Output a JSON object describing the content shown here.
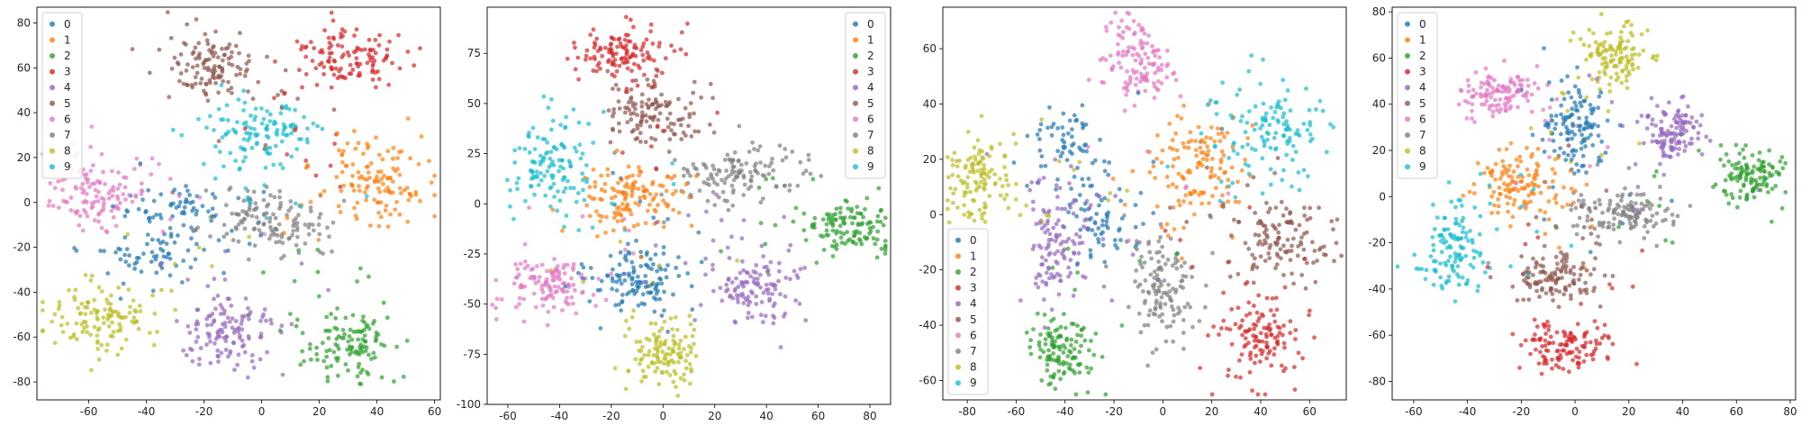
{
  "figure": {
    "palette": {
      "0": "#1f77b4",
      "1": "#ff7f0e",
      "2": "#2ca02c",
      "3": "#d62728",
      "4": "#9467bd",
      "5": "#8c564b",
      "6": "#e377c2",
      "7": "#7f7f7f",
      "8": "#bcbd22",
      "9": "#17becf"
    }
  },
  "chart_data": [
    {
      "type": "scatter",
      "title": "",
      "xlabel": "",
      "ylabel": "",
      "xlim": [
        -78,
        62
      ],
      "ylim": [
        -88,
        87
      ],
      "xticks": [
        -60,
        -40,
        -20,
        0,
        20,
        40,
        60
      ],
      "yticks": [
        -80,
        -60,
        -40,
        -20,
        0,
        20,
        40,
        60,
        80
      ],
      "legend": {
        "position": "top-left",
        "entries": [
          "0",
          "1",
          "2",
          "3",
          "4",
          "5",
          "6",
          "7",
          "8",
          "9"
        ]
      },
      "grid": false,
      "points_per_class": 130,
      "clusters": [
        {
          "label": "0",
          "centers": [
            [
              -38,
              -25
            ],
            [
              -30,
              -3
            ]
          ],
          "spread": [
            8,
            6
          ]
        },
        {
          "label": "1",
          "centers": [
            [
              40,
              10
            ]
          ],
          "spread": [
            9,
            9
          ]
        },
        {
          "label": "2",
          "centers": [
            [
              30,
              -64
            ]
          ],
          "spread": [
            8,
            8
          ]
        },
        {
          "label": "3",
          "centers": [
            [
              30,
              65
            ]
          ],
          "spread": [
            10,
            7
          ]
        },
        {
          "label": "4",
          "centers": [
            [
              -12,
              -58
            ]
          ],
          "spread": [
            8,
            8
          ]
        },
        {
          "label": "5",
          "centers": [
            [
              -18,
              60
            ]
          ],
          "spread": [
            9,
            8
          ]
        },
        {
          "label": "6",
          "centers": [
            [
              -55,
              5
            ]
          ],
          "spread": [
            9,
            8
          ]
        },
        {
          "label": "7",
          "centers": [
            [
              2,
              -8
            ]
          ],
          "spread": [
            10,
            7
          ]
        },
        {
          "label": "8",
          "centers": [
            [
              -56,
              -52
            ]
          ],
          "spread": [
            8,
            7
          ]
        },
        {
          "label": "9",
          "centers": [
            [
              0,
              30
            ]
          ],
          "spread": [
            10,
            8
          ]
        }
      ]
    },
    {
      "type": "scatter",
      "title": "",
      "xlabel": "",
      "ylabel": "",
      "xlim": [
        -68,
        88
      ],
      "ylim": [
        -100,
        98
      ],
      "xticks": [
        -60,
        -40,
        -20,
        0,
        20,
        40,
        60,
        80
      ],
      "yticks": [
        -100,
        -75,
        -50,
        -25,
        0,
        25,
        50,
        75
      ],
      "legend": {
        "position": "top-right",
        "entries": [
          "0",
          "1",
          "2",
          "3",
          "4",
          "5",
          "6",
          "7",
          "8",
          "9"
        ]
      },
      "grid": false,
      "points_per_class": 130,
      "clusters": [
        {
          "label": "0",
          "centers": [
            [
              -8,
              -38
            ]
          ],
          "spread": [
            9,
            8
          ]
        },
        {
          "label": "1",
          "centers": [
            [
              -12,
              5
            ]
          ],
          "spread": [
            10,
            8
          ]
        },
        {
          "label": "2",
          "centers": [
            [
              72,
              -12
            ]
          ],
          "spread": [
            8,
            7
          ]
        },
        {
          "label": "3",
          "centers": [
            [
              -15,
              75
            ]
          ],
          "spread": [
            9,
            7
          ]
        },
        {
          "label": "4",
          "centers": [
            [
              38,
              -42
            ]
          ],
          "spread": [
            8,
            9
          ]
        },
        {
          "label": "5",
          "centers": [
            [
              -5,
              45
            ]
          ],
          "spread": [
            11,
            8
          ]
        },
        {
          "label": "6",
          "centers": [
            [
              -45,
              -40
            ]
          ],
          "spread": [
            9,
            7
          ]
        },
        {
          "label": "7",
          "centers": [
            [
              30,
              15
            ]
          ],
          "spread": [
            12,
            7
          ]
        },
        {
          "label": "8",
          "centers": [
            [
              0,
              -75
            ]
          ],
          "spread": [
            7,
            8
          ]
        },
        {
          "label": "9",
          "centers": [
            [
              -45,
              20
            ]
          ],
          "spread": [
            8,
            13
          ]
        }
      ]
    },
    {
      "type": "scatter",
      "title": "",
      "xlabel": "",
      "ylabel": "",
      "xlim": [
        -90,
        75
      ],
      "ylim": [
        -67,
        75
      ],
      "xticks": [
        -80,
        -60,
        -40,
        -20,
        0,
        20,
        40,
        60
      ],
      "yticks": [
        -60,
        -40,
        -20,
        0,
        20,
        40,
        60
      ],
      "legend": {
        "position": "bottom-left",
        "entries": [
          "0",
          "1",
          "2",
          "3",
          "4",
          "5",
          "6",
          "7",
          "8",
          "9"
        ]
      },
      "grid": false,
      "points_per_class": 130,
      "clusters": [
        {
          "label": "0",
          "centers": [
            [
              -38,
              25
            ],
            [
              -25,
              0
            ]
          ],
          "spread": [
            8,
            8
          ]
        },
        {
          "label": "1",
          "centers": [
            [
              15,
              18
            ]
          ],
          "spread": [
            10,
            10
          ]
        },
        {
          "label": "2",
          "centers": [
            [
              -42,
              -50
            ]
          ],
          "spread": [
            7,
            7
          ]
        },
        {
          "label": "3",
          "centers": [
            [
              40,
              -45
            ]
          ],
          "spread": [
            9,
            8
          ]
        },
        {
          "label": "4",
          "centers": [
            [
              -42,
              -10
            ]
          ],
          "spread": [
            7,
            12
          ]
        },
        {
          "label": "5",
          "centers": [
            [
              48,
              -8
            ]
          ],
          "spread": [
            11,
            8
          ]
        },
        {
          "label": "6",
          "centers": [
            [
              -10,
              55
            ]
          ],
          "spread": [
            7,
            8
          ]
        },
        {
          "label": "7",
          "centers": [
            [
              0,
              -28
            ]
          ],
          "spread": [
            8,
            10
          ]
        },
        {
          "label": "8",
          "centers": [
            [
              -75,
              10
            ]
          ],
          "spread": [
            7,
            9
          ]
        },
        {
          "label": "9",
          "centers": [
            [
              45,
              32
            ]
          ],
          "spread": [
            11,
            9
          ]
        }
      ]
    },
    {
      "type": "scatter",
      "title": "",
      "xlabel": "",
      "ylabel": "",
      "xlim": [
        -68,
        82
      ],
      "ylim": [
        -88,
        82
      ],
      "xticks": [
        -60,
        -40,
        -20,
        0,
        20,
        40,
        60,
        80
      ],
      "yticks": [
        -80,
        -60,
        -40,
        -20,
        0,
        20,
        40,
        60,
        80
      ],
      "legend": {
        "position": "top-left",
        "entries": [
          "0",
          "1",
          "2",
          "3",
          "4",
          "5",
          "6",
          "7",
          "8",
          "9"
        ]
      },
      "grid": false,
      "points_per_class": 130,
      "clusters": [
        {
          "label": "0",
          "centers": [
            [
              0,
              30
            ]
          ],
          "spread": [
            6,
            10
          ]
        },
        {
          "label": "1",
          "centers": [
            [
              -20,
              6
            ]
          ],
          "spread": [
            8,
            7
          ]
        },
        {
          "label": "2",
          "centers": [
            [
              65,
              8
            ]
          ],
          "spread": [
            6,
            6
          ]
        },
        {
          "label": "3",
          "centers": [
            [
              -5,
              -65
            ]
          ],
          "spread": [
            9,
            5
          ]
        },
        {
          "label": "4",
          "centers": [
            [
              35,
              28
            ]
          ],
          "spread": [
            6,
            7
          ]
        },
        {
          "label": "5",
          "centers": [
            [
              -8,
              -35
            ]
          ],
          "spread": [
            8,
            6
          ]
        },
        {
          "label": "6",
          "centers": [
            [
              -28,
              45
            ]
          ],
          "spread": [
            7,
            5
          ]
        },
        {
          "label": "7",
          "centers": [
            [
              18,
              -8
            ]
          ],
          "spread": [
            10,
            5
          ]
        },
        {
          "label": "8",
          "centers": [
            [
              15,
              62
            ]
          ],
          "spread": [
            6,
            7
          ]
        },
        {
          "label": "9",
          "centers": [
            [
              -45,
              -22
            ]
          ],
          "spread": [
            6,
            10
          ]
        }
      ]
    }
  ]
}
